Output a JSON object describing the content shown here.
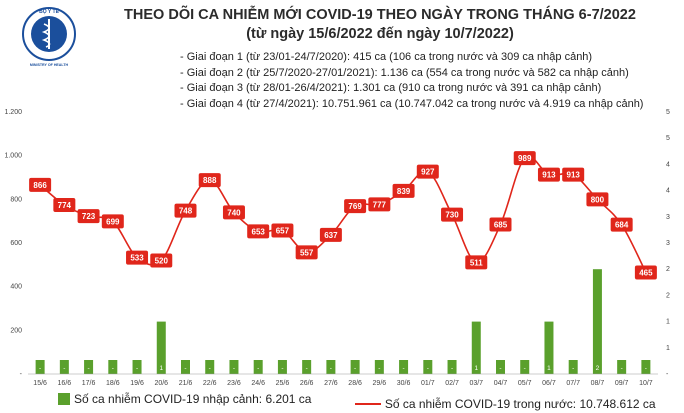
{
  "header": {
    "title_line1": "THEO DÕI CA NHIỄM MỚI COVID-19 THEO NGÀY TRONG THÁNG 6-7/2022",
    "title_line2": "(từ ngày 15/6/2022 đến ngày 10/7/2022)",
    "logo_text": "BỘ Y TẾ",
    "logo_subtext": "MINISTRY OF HEALTH"
  },
  "phases": [
    "- Giai đoạn 1 (từ 23/01-24/7/2020): 415 ca (106 ca trong nước và 309 ca nhập cảnh)",
    "- Giai đoạn 2 (từ 25/7/2020-27/01/2021): 1.136 ca (554 ca trong nước và 582 ca nhập cảnh)",
    "- Giai đoạn 3 (từ 28/01-26/4/2021): 1.301 ca (910 ca trong nước và 391 ca nhập cảnh)",
    "- Giai đoạn 4 (từ 27/4/2021): 10.751.961 ca (10.747.042 ca trong nước và 4.919 ca nhập cảnh)"
  ],
  "legend": {
    "bars": "Số ca nhiễm COVID-19 nhập cảnh: 6.201 ca",
    "line": "Số ca nhiễm COVID-19 trong nước: 10.748.612 ca"
  },
  "colors": {
    "line": "#e0261b",
    "bar": "#5aa02c",
    "label_bg": "#e0261b"
  },
  "chart_data": {
    "type": "bar+line",
    "categories": [
      "15/6",
      "16/6",
      "17/6",
      "18/6",
      "19/6",
      "20/6",
      "21/6",
      "22/6",
      "23/6",
      "24/6",
      "25/6",
      "26/6",
      "27/6",
      "28/6",
      "29/6",
      "30/6",
      "01/7",
      "02/7",
      "03/7",
      "04/7",
      "05/7",
      "06/7",
      "07/7",
      "08/7",
      "09/7",
      "10/7"
    ],
    "series": [
      {
        "name": "Số ca nhiễm COVID-19 trong nước",
        "axis": "left",
        "kind": "line",
        "values": [
          866,
          774,
          723,
          699,
          533,
          520,
          748,
          888,
          740,
          653,
          657,
          557,
          637,
          769,
          777,
          839,
          927,
          730,
          511,
          685,
          989,
          913,
          913,
          800,
          684,
          465
        ]
      },
      {
        "name": "Số ca nhiễm COVID-19 nhập cảnh",
        "axis": "right",
        "kind": "bar",
        "values": [
          0,
          0,
          0,
          0,
          0,
          1,
          0,
          0,
          0,
          0,
          0,
          0,
          0,
          0,
          0,
          0,
          0,
          0,
          1,
          0,
          0,
          1,
          0,
          2,
          0,
          0
        ],
        "labels": [
          "-",
          "-",
          "-",
          "-",
          "-",
          "1",
          "-",
          "-",
          "-",
          "-",
          "-",
          "-",
          "-",
          "-",
          "-",
          "-",
          "-",
          "-",
          "1",
          "-",
          "-",
          "1",
          "-",
          "2",
          "-",
          "-"
        ]
      }
    ],
    "y_left_ticks": [
      "-",
      "200",
      "400",
      "600",
      "800",
      "1.000",
      "1.200"
    ],
    "y_left_range": [
      0,
      1200
    ],
    "y_right_ticks": [
      "-",
      "1",
      "1",
      "2",
      "2",
      "3",
      "3",
      "4",
      "4",
      "5",
      "5"
    ],
    "y_right_range": [
      0,
      5
    ],
    "grid": false,
    "legend_position": "bottom"
  }
}
